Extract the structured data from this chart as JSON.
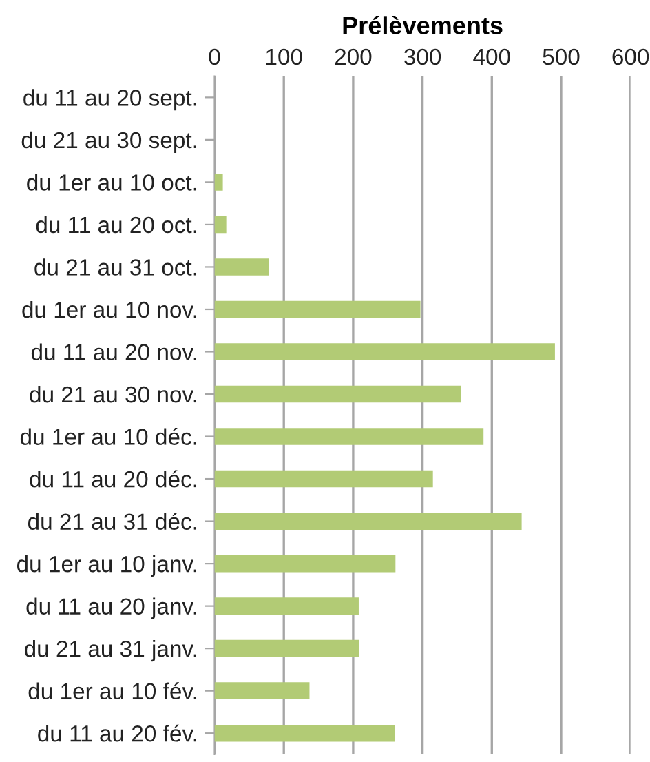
{
  "chart_data": {
    "type": "bar",
    "orientation": "horizontal",
    "title": "Prélèvements",
    "categories": [
      "du 11 au 20 sept.",
      "du 21 au 30 sept.",
      "du 1er au 10 oct.",
      "du 11 au 20 oct.",
      "du 21 au 31 oct.",
      "du 1er au 10 nov.",
      "du 11 au 20 nov.",
      "du 21 au 30 nov.",
      "du 1er au 10 déc.",
      "du 11 au 20 déc.",
      "du 21 au 31 déc.",
      "du 1er au 10 janv.",
      "du 11 au 20 janv.",
      "du 21 au 31 janv.",
      "du 1er au 10 fév.",
      "du 11 au 20 fév."
    ],
    "values": [
      0,
      0,
      12,
      17,
      78,
      297,
      491,
      356,
      388,
      315,
      443,
      261,
      208,
      209,
      137,
      260
    ],
    "color": "#b2cb75",
    "xlim": [
      0,
      600
    ],
    "xticks": [
      0,
      100,
      200,
      300,
      400,
      500,
      600
    ],
    "grid": "x"
  }
}
